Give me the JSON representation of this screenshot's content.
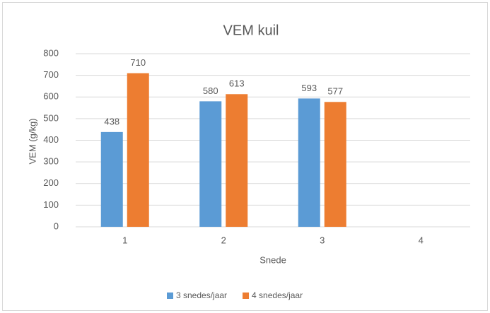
{
  "chart_data": {
    "type": "bar",
    "title": "VEM kuil",
    "x_label": "Snede",
    "y_label": "VEM (g/kg)",
    "categories": [
      "1",
      "2",
      "3",
      "4"
    ],
    "series": [
      {
        "name": "3 snedes/jaar",
        "color": "#5b9bd5",
        "values": [
          438,
          580,
          593,
          null
        ]
      },
      {
        "name": "4 snedes/jaar",
        "color": "#ed7d31",
        "values": [
          710,
          613,
          577,
          null
        ]
      }
    ],
    "ylim": [
      0,
      800
    ],
    "yticks": [
      0,
      100,
      200,
      300,
      400,
      500,
      600,
      700,
      800
    ],
    "grid": true,
    "legend": "bottom",
    "data_labels": true
  }
}
